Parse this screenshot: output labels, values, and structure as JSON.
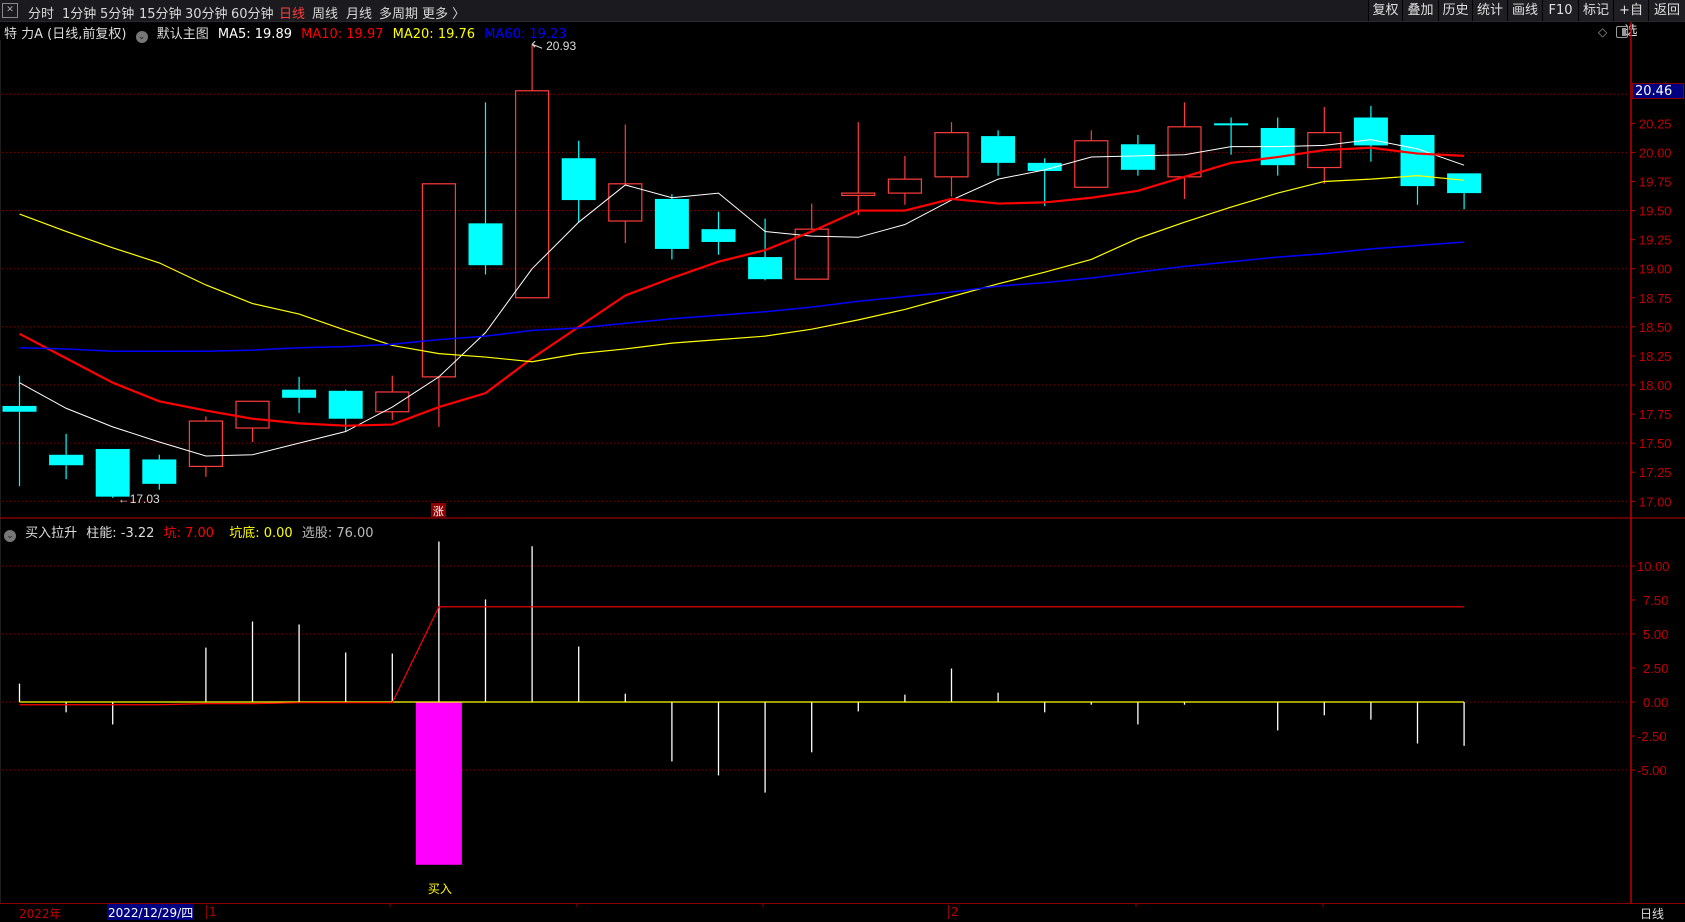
{
  "toolbar": {
    "periods": [
      "分时",
      "1分钟",
      "5分钟",
      "15分钟",
      "30分钟",
      "60分钟",
      "日线",
      "周线",
      "月线",
      "多周期",
      "更多 〉"
    ],
    "active_period": "日线",
    "buttons": [
      "复权",
      "叠加",
      "历史",
      "统计",
      "画线",
      "F10",
      "标记",
      "+自选",
      "返回"
    ]
  },
  "info": {
    "stock": "特 力A (日线,前复权)",
    "template": "默认主图",
    "ma5": "MA5: 19.89",
    "ma10": "MA10: 19.97",
    "ma20": "MA20: 19.76",
    "ma60": "MA60: 19.23"
  },
  "indicator_info": {
    "name": "买入拉升",
    "zhuneng": "柱能: -3.22",
    "keng": "坑: 7.00",
    "kengdi": "坑底: 0.00",
    "xuangu": "选股: 76.00"
  },
  "current_price_label": "20.46",
  "high_label": "20.93",
  "low_label": "←17.03",
  "zhang_marker": "涨",
  "buy_marker": "买入",
  "datebar": {
    "year": "2022年",
    "cursor_date": "2022/12/29/四",
    "month1": "1",
    "month2": "2",
    "period": "日线"
  },
  "colors": {
    "up": "#ff3c3c",
    "down": "#00ffff",
    "ma5": "#ffffff",
    "ma10": "#ff0000",
    "ma20": "#ffff00",
    "ma60": "#0000ff",
    "buy_bar": "#ff00ff",
    "axis": "#c00000"
  },
  "chart_data": [
    {
      "type": "candlestick",
      "ylim": [
        17.0,
        20.5
      ],
      "yticks": [
        "20.25",
        "20.00",
        "19.75",
        "19.50",
        "19.25",
        "19.00",
        "18.75",
        "18.50",
        "18.25",
        "18.00",
        "17.75",
        "17.50",
        "17.25",
        "17.00"
      ],
      "ohlc": [
        [
          17.82,
          18.08,
          17.13,
          17.77
        ],
        [
          17.4,
          17.58,
          17.19,
          17.31
        ],
        [
          17.45,
          17.45,
          17.03,
          17.04
        ],
        [
          17.36,
          17.4,
          17.1,
          17.15
        ],
        [
          17.3,
          17.73,
          17.21,
          17.69
        ],
        [
          17.63,
          17.86,
          17.51,
          17.86
        ],
        [
          17.96,
          18.07,
          17.76,
          17.89
        ],
        [
          17.95,
          17.96,
          17.6,
          17.71
        ],
        [
          17.77,
          18.08,
          17.7,
          17.94
        ],
        [
          18.07,
          19.73,
          17.64,
          19.73
        ],
        [
          19.39,
          20.43,
          18.95,
          19.03
        ],
        [
          18.75,
          20.93,
          18.75,
          20.53
        ],
        [
          19.95,
          20.1,
          19.4,
          19.59
        ],
        [
          19.41,
          20.24,
          19.22,
          19.73
        ],
        [
          19.6,
          19.64,
          19.08,
          19.17
        ],
        [
          19.34,
          19.49,
          19.12,
          19.23
        ],
        [
          19.1,
          19.43,
          18.9,
          18.91
        ],
        [
          18.91,
          19.56,
          18.91,
          19.34
        ],
        [
          19.63,
          20.26,
          19.46,
          19.65
        ],
        [
          19.65,
          19.97,
          19.55,
          19.77
        ],
        [
          19.79,
          20.26,
          19.62,
          20.17
        ],
        [
          20.14,
          20.19,
          19.8,
          19.91
        ],
        [
          19.91,
          19.95,
          19.54,
          19.84
        ],
        [
          19.7,
          20.19,
          19.7,
          20.1
        ],
        [
          20.07,
          20.15,
          19.8,
          19.85
        ],
        [
          19.79,
          20.43,
          19.6,
          20.22
        ],
        [
          20.25,
          20.3,
          19.98,
          20.24
        ],
        [
          20.21,
          20.3,
          19.8,
          19.89
        ],
        [
          19.87,
          20.39,
          19.73,
          20.17
        ],
        [
          20.3,
          20.4,
          19.92,
          20.06
        ],
        [
          20.15,
          20.15,
          19.55,
          19.71
        ],
        [
          19.82,
          19.82,
          19.51,
          19.65
        ]
      ],
      "series": [
        {
          "name": "MA5",
          "values": [
            18.02,
            17.8,
            17.64,
            17.51,
            17.39,
            17.4,
            17.5,
            17.6,
            17.81,
            18.07,
            18.45,
            19.0,
            19.4,
            19.72,
            19.61,
            19.65,
            19.32,
            19.28,
            19.27,
            19.38,
            19.59,
            19.77,
            19.85,
            19.96,
            19.97,
            19.98,
            20.05,
            20.05,
            20.06,
            20.11,
            20.03,
            19.89
          ]
        },
        {
          "name": "MA10",
          "values": [
            18.44,
            18.23,
            18.02,
            17.86,
            17.78,
            17.71,
            17.67,
            17.65,
            17.66,
            17.81,
            17.93,
            18.23,
            18.5,
            18.77,
            18.92,
            19.06,
            19.16,
            19.32,
            19.5,
            19.5,
            19.6,
            19.56,
            19.57,
            19.61,
            19.67,
            19.79,
            19.91,
            19.96,
            20.02,
            20.04,
            19.99,
            19.97
          ]
        },
        {
          "name": "MA20",
          "values": [
            19.47,
            19.32,
            19.18,
            19.05,
            18.86,
            18.7,
            18.61,
            18.47,
            18.34,
            18.27,
            18.24,
            18.2,
            18.27,
            18.31,
            18.36,
            18.39,
            18.42,
            18.48,
            18.56,
            18.65,
            18.76,
            18.87,
            18.97,
            19.08,
            19.26,
            19.4,
            19.53,
            19.65,
            19.75,
            19.77,
            19.8,
            19.76
          ]
        },
        {
          "name": "MA60",
          "values": [
            18.32,
            18.31,
            18.29,
            18.29,
            18.29,
            18.3,
            18.32,
            18.33,
            18.35,
            18.39,
            18.42,
            18.47,
            18.49,
            18.53,
            18.57,
            18.6,
            18.63,
            18.67,
            18.72,
            18.76,
            18.8,
            18.85,
            18.88,
            18.92,
            18.97,
            19.02,
            19.06,
            19.1,
            19.13,
            19.17,
            19.2,
            19.23
          ]
        }
      ]
    },
    {
      "type": "bar",
      "ylim": [
        -11.97,
        12.0
      ],
      "yticks": [
        "10.00",
        "7.50",
        "5.00",
        "2.50",
        "0.00",
        "-2.50",
        "-5.00"
      ],
      "series": [
        {
          "name": "柱能",
          "values": [
            1.35,
            -0.76,
            -1.65,
            0,
            4.0,
            5.92,
            5.7,
            3.64,
            3.56,
            11.8,
            7.54,
            11.45,
            4.08,
            0.61,
            -4.37,
            -5.4,
            -6.66,
            -3.7,
            -0.69,
            0.54,
            2.46,
            0.69,
            -0.76,
            -0.2,
            -1.65,
            -0.2,
            0,
            -2.09,
            -0.98,
            -1.3,
            -3.05,
            -3.22
          ]
        },
        {
          "name": "坑",
          "values": [
            -0.2,
            -0.2,
            -0.2,
            -0.2,
            -0.12,
            -0.12,
            -0.05,
            -0.05,
            -0.05,
            7,
            7,
            7,
            7,
            7,
            7,
            7,
            7,
            7,
            7,
            7,
            7,
            7,
            7,
            7,
            7,
            7,
            7,
            7,
            7,
            7,
            7,
            7
          ]
        },
        {
          "name": "坑底",
          "values": [
            0,
            0,
            0,
            0,
            0,
            0,
            0,
            0,
            0,
            0,
            0,
            0,
            0,
            0,
            0,
            0,
            0,
            0,
            0,
            0,
            0,
            0,
            0,
            0,
            0,
            0,
            0,
            0,
            0,
            0,
            0,
            0
          ]
        },
        {
          "name": "买入",
          "values": [
            0,
            0,
            0,
            0,
            0,
            0,
            0,
            0,
            0,
            -11.97,
            0,
            0,
            0,
            0,
            0,
            0,
            0,
            0,
            0,
            0,
            0,
            0,
            0,
            0,
            0,
            0,
            0,
            0,
            0,
            0,
            0,
            0
          ]
        }
      ]
    }
  ]
}
